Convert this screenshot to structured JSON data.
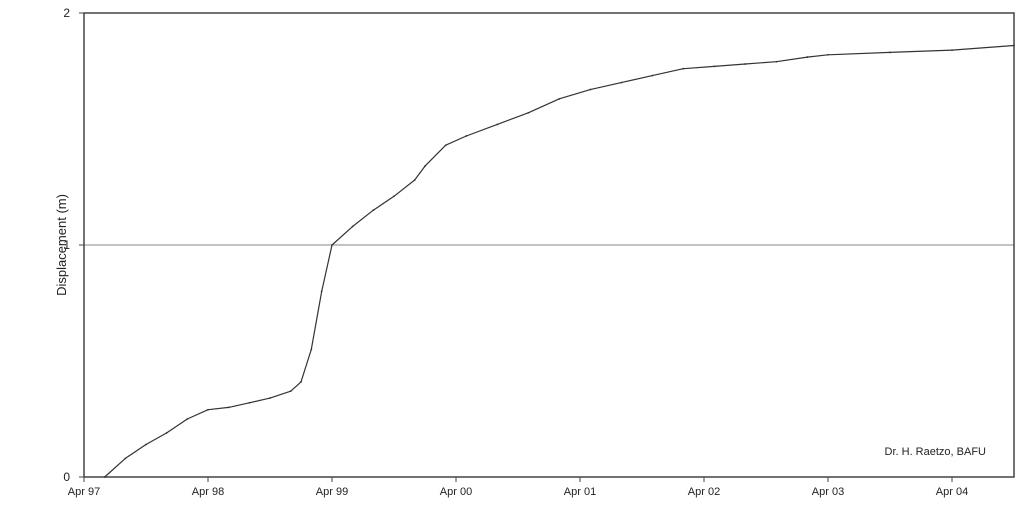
{
  "chart_data": {
    "type": "line",
    "title": "",
    "xlabel": "",
    "ylabel": "Displacement (m)",
    "x_tick_labels": [
      "Apr 97",
      "Apr 98",
      "Apr 99",
      "Apr 00",
      "Apr 01",
      "Apr 02",
      "Apr 03",
      "Apr 04"
    ],
    "y_ticks": [
      0,
      1,
      2
    ],
    "y_tick_labels": [
      "0",
      "1",
      "2"
    ],
    "xlim": [
      "1997-04",
      "2004-10"
    ],
    "ylim": [
      0,
      2
    ],
    "grid": "horizontal at y=1",
    "legend": "none",
    "annotation": "Dr. H. Raetzo, BAFU",
    "line_color": "#333333",
    "series": [
      {
        "x": [
          "1997-06",
          "1997-08",
          "1997-10",
          "1997-12",
          "1998-02",
          "1998-04",
          "1998-06",
          "1998-08",
          "1998-10",
          "1998-12",
          "1999-01",
          "1999-02",
          "1999-03",
          "1999-04",
          "1999-06",
          "1999-08",
          "1999-10",
          "1999-12",
          "2000-01",
          "2000-03",
          "2000-05",
          "2000-08",
          "2000-11",
          "2001-02",
          "2001-05",
          "2001-08",
          "2001-11",
          "2002-02",
          "2002-05",
          "2002-08",
          "2002-11",
          "2003-02",
          "2003-04",
          "2003-10",
          "2004-04",
          "2004-10"
        ],
        "values": [
          0.0,
          0.08,
          0.14,
          0.19,
          0.25,
          0.29,
          0.3,
          0.32,
          0.34,
          0.37,
          0.41,
          0.55,
          0.8,
          1.0,
          1.08,
          1.15,
          1.21,
          1.28,
          1.34,
          1.43,
          1.47,
          1.52,
          1.57,
          1.63,
          1.67,
          1.7,
          1.73,
          1.76,
          1.77,
          1.78,
          1.79,
          1.81,
          1.82,
          1.83,
          1.84,
          1.86
        ]
      }
    ]
  }
}
